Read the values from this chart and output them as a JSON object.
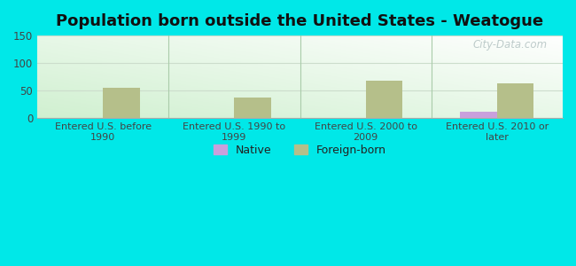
{
  "title": "Population born outside the United States - Weatogue",
  "categories": [
    "Entered U.S. before\n1990",
    "Entered U.S. 1990 to\n1999",
    "Entered U.S. 2000 to\n2009",
    "Entered U.S. 2010 or\nlater"
  ],
  "native_values": [
    0,
    0,
    0,
    12
  ],
  "foreign_values": [
    55,
    37,
    68,
    64
  ],
  "native_color": "#c9a0dc",
  "foreign_color": "#b5bf8a",
  "outer_background": "#00e8e8",
  "ylim": [
    0,
    150
  ],
  "yticks": [
    0,
    50,
    100,
    150
  ],
  "bar_width": 0.28,
  "watermark": "City-Data.com",
  "legend_native": "Native",
  "legend_foreign": "Foreign-born",
  "title_fontsize": 13,
  "grid_color": "#ddeedd",
  "divider_color": "#aaccaa"
}
